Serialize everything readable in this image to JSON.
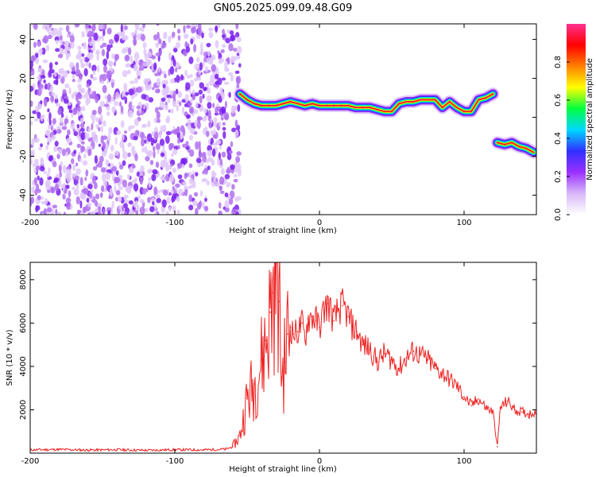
{
  "title": "GN05.2025.099.09.48.G09",
  "chart_data": [
    {
      "type": "heatmap",
      "xlabel": "Height of straight line (km)",
      "ylabel": "Frequency (Hz)",
      "xlim": [
        -200,
        150
      ],
      "ylim": [
        -50,
        48
      ],
      "xticks": [
        -200,
        -100,
        0,
        100
      ],
      "yticks": [
        -40,
        -20,
        0,
        20,
        40
      ],
      "grid": false,
      "colorbar": {
        "label": "Normalized spectral amplitude",
        "range": [
          0,
          1
        ],
        "ticks": [
          0.0,
          0.2,
          0.4,
          0.6,
          0.8
        ],
        "colors": [
          "#ffffff",
          "#d8b8f8",
          "#9b30ff",
          "#3030ff",
          "#00d8ff",
          "#00ff40",
          "#ffff00",
          "#ff8000",
          "#ff0000",
          "#ff3090"
        ]
      },
      "noise_region": {
        "x_range": [
          -200,
          -55
        ],
        "y_range": [
          -50,
          48
        ],
        "amplitude": 0.15
      },
      "ridge": [
        {
          "x": -55,
          "y": 12
        },
        {
          "x": -50,
          "y": 9
        },
        {
          "x": -45,
          "y": 7
        },
        {
          "x": -40,
          "y": 6
        },
        {
          "x": -35,
          "y": 6
        },
        {
          "x": -30,
          "y": 6
        },
        {
          "x": -25,
          "y": 7
        },
        {
          "x": -20,
          "y": 8
        },
        {
          "x": -15,
          "y": 7
        },
        {
          "x": -10,
          "y": 6
        },
        {
          "x": -5,
          "y": 7
        },
        {
          "x": 0,
          "y": 6
        },
        {
          "x": 5,
          "y": 6
        },
        {
          "x": 10,
          "y": 6
        },
        {
          "x": 15,
          "y": 6
        },
        {
          "x": 20,
          "y": 6
        },
        {
          "x": 25,
          "y": 5
        },
        {
          "x": 30,
          "y": 5
        },
        {
          "x": 35,
          "y": 5
        },
        {
          "x": 40,
          "y": 4
        },
        {
          "x": 45,
          "y": 3
        },
        {
          "x": 50,
          "y": 3
        },
        {
          "x": 55,
          "y": 7
        },
        {
          "x": 60,
          "y": 8
        },
        {
          "x": 65,
          "y": 8
        },
        {
          "x": 70,
          "y": 9
        },
        {
          "x": 75,
          "y": 9
        },
        {
          "x": 80,
          "y": 9
        },
        {
          "x": 85,
          "y": 5
        },
        {
          "x": 90,
          "y": 8
        },
        {
          "x": 95,
          "y": 5
        },
        {
          "x": 100,
          "y": 3
        },
        {
          "x": 105,
          "y": 3
        },
        {
          "x": 110,
          "y": 9
        },
        {
          "x": 115,
          "y": 10
        },
        {
          "x": 120,
          "y": 12
        },
        {
          "x": 123,
          "y": -13
        },
        {
          "x": 128,
          "y": -14
        },
        {
          "x": 133,
          "y": -13
        },
        {
          "x": 138,
          "y": -15
        },
        {
          "x": 143,
          "y": -16
        },
        {
          "x": 148,
          "y": -18
        }
      ]
    },
    {
      "type": "line",
      "xlabel": "Height of straight line (km)",
      "ylabel": "SNR (10 * v/v)",
      "xlim": [
        -200,
        150
      ],
      "ylim": [
        0,
        8800
      ],
      "xticks": [
        -200,
        -100,
        0,
        100
      ],
      "yticks": [
        2000,
        4000,
        6000,
        8000
      ],
      "grid": false,
      "color": "#ee2020",
      "series": [
        {
          "x": [
            -200,
            -180,
            -160,
            -140,
            -120,
            -100,
            -80,
            -65,
            -60,
            -55,
            -50,
            -45,
            -40,
            -37,
            -34,
            -32,
            -30,
            -28,
            -26,
            -24,
            -22,
            -20,
            -18,
            -15,
            -12,
            -10,
            -8,
            -5,
            -2,
            0,
            3,
            6,
            10,
            13,
            16,
            20,
            23,
            26,
            30,
            35,
            40,
            45,
            50,
            55,
            60,
            65,
            70,
            75,
            80,
            85,
            90,
            95,
            100,
            105,
            110,
            115,
            120,
            123,
            125,
            130,
            135,
            140,
            145,
            150
          ],
          "y": [
            150,
            170,
            140,
            160,
            130,
            160,
            150,
            180,
            300,
            800,
            2500,
            3200,
            4300,
            5200,
            6500,
            7400,
            8700,
            7000,
            3500,
            4200,
            5500,
            5800,
            5500,
            5600,
            6000,
            5200,
            6200,
            6300,
            6100,
            5800,
            6600,
            6900,
            6100,
            6600,
            6800,
            6300,
            5800,
            5600,
            5000,
            4800,
            4200,
            4600,
            4300,
            3900,
            4400,
            4700,
            4500,
            4300,
            3900,
            3700,
            3400,
            3100,
            2600,
            2200,
            2500,
            2100,
            1900,
            300,
            2100,
            2400,
            2000,
            1900,
            1800,
            1950
          ]
        }
      ]
    }
  ]
}
